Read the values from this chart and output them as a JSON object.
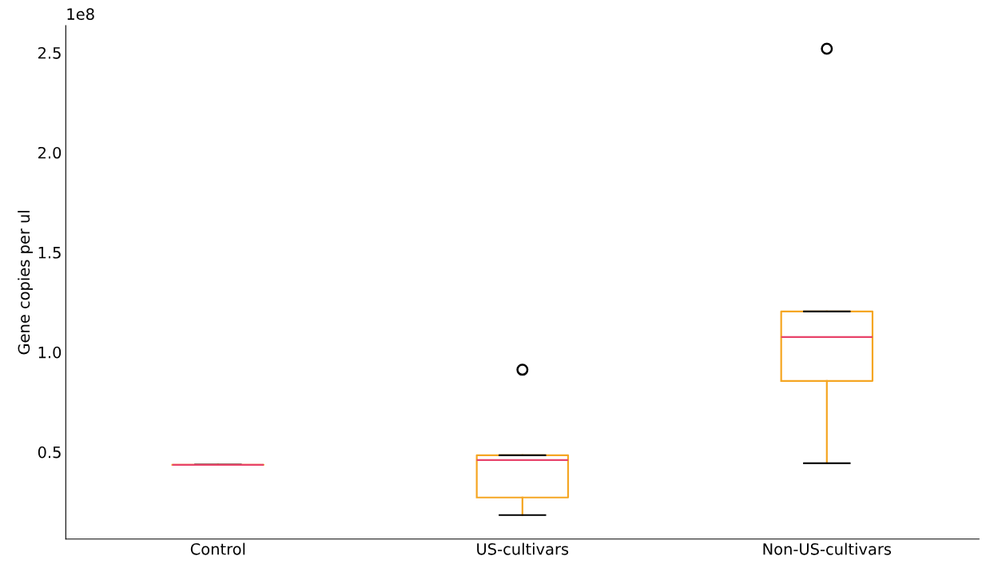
{
  "chart_data": {
    "type": "box",
    "ylabel": "Gene copies per ul",
    "categories": [
      "Control",
      "US-cultivars",
      "Non-US-cultivars"
    ],
    "boxes": [
      {
        "low": 0.436,
        "q1": 0.436,
        "median": 0.436,
        "q3": 0.436,
        "high": 0.436
      },
      {
        "low": 0.184,
        "q1": 0.272,
        "median": 0.46,
        "q3": 0.484,
        "high": 0.484,
        "outliers": [
          0.912
        ]
      },
      {
        "low": 0.444,
        "q1": 0.856,
        "median": 1.076,
        "q3": 1.204,
        "high": 1.204,
        "outliers": [
          2.52
        ]
      }
    ],
    "color": "#f5a623",
    "ylim": [
      0.064,
      2.636
    ],
    "yticks": [
      0.5,
      {
        "value": 1,
        "label": "1.0"
      },
      1.5,
      {
        "value": 2,
        "label": "2.0"
      },
      2.5
    ],
    "annotations": [
      "1e8"
    ]
  }
}
